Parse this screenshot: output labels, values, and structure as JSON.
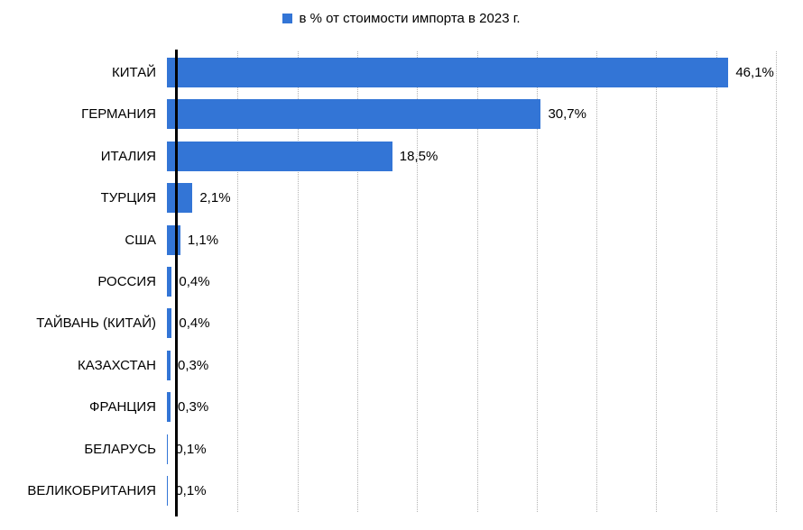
{
  "colors": {
    "bar": "#3375D6",
    "gridline": "#b3b3b3",
    "axis": "#000000",
    "background": "#FFFFFF",
    "text": "#000000"
  },
  "chart_data": {
    "type": "bar",
    "orientation": "horizontal",
    "title": "",
    "legend": "в % от стоимости импорта в 2023 г.",
    "legend_position": "top",
    "categories": [
      "КИТАЙ",
      "ГЕРМАНИЯ",
      "ИТАЛИЯ",
      "ТУРЦИЯ",
      "США",
      "РОССИЯ",
      "ТАЙВАНЬ (КИТАЙ)",
      "КАЗАХСТАН",
      "ФРАНЦИЯ",
      "БЕЛАРУСЬ",
      "ВЕЛИКОБРИТАНИЯ"
    ],
    "values": [
      46.1,
      30.7,
      18.5,
      2.1,
      1.1,
      0.4,
      0.4,
      0.3,
      0.3,
      0.1,
      0.1
    ],
    "value_labels": [
      "46,1%",
      "30,7%",
      "18,5%",
      "2,1%",
      "1,1%",
      "0,4%",
      "0,4%",
      "0,3%",
      "0,3%",
      "0,1%",
      "0,1%"
    ],
    "unit": "%",
    "xlim": [
      0,
      50
    ],
    "gridline_step": 5,
    "grid": true
  }
}
